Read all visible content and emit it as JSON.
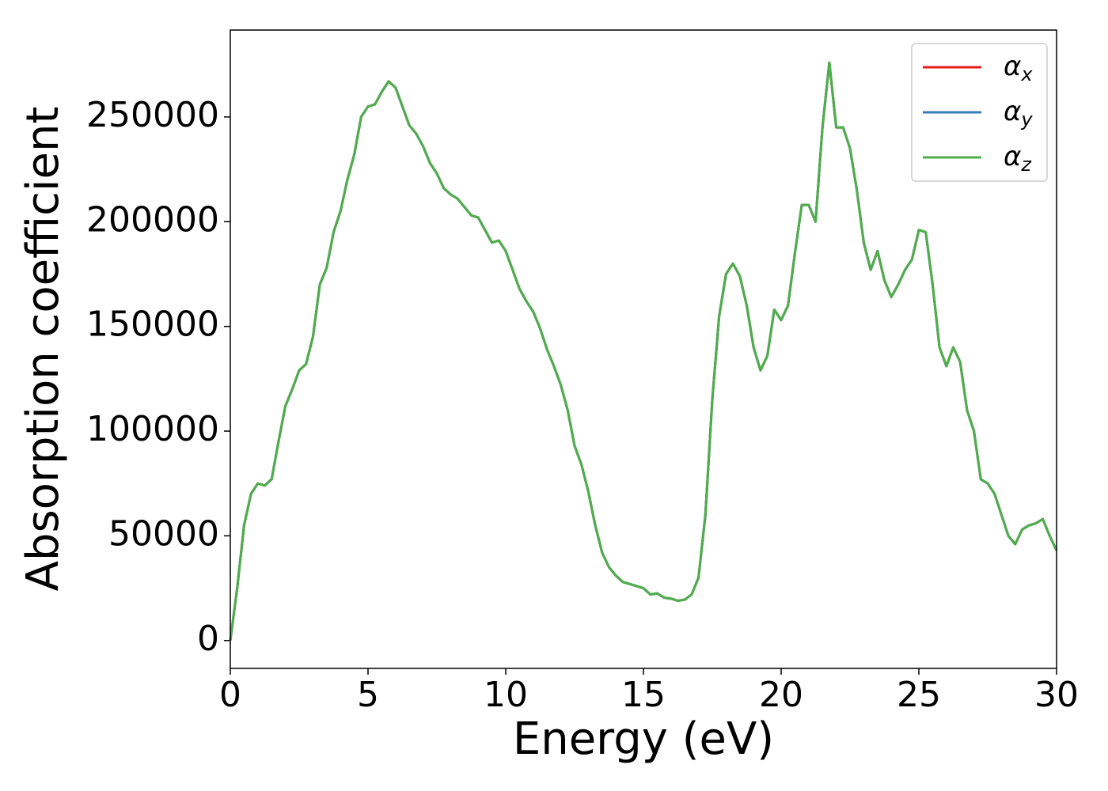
{
  "chart_data": {
    "type": "line",
    "xlabel": "Energy (eV)",
    "ylabel": "Absorption coefficient",
    "x": [
      0,
      0.25,
      0.5,
      0.75,
      1,
      1.25,
      1.5,
      1.75,
      2,
      2.25,
      2.5,
      2.75,
      3,
      3.25,
      3.5,
      3.75,
      4,
      4.25,
      4.5,
      4.75,
      5,
      5.25,
      5.5,
      5.75,
      6,
      6.25,
      6.5,
      6.75,
      7,
      7.25,
      7.5,
      7.75,
      8,
      8.25,
      8.5,
      8.75,
      9,
      9.25,
      9.5,
      9.75,
      10,
      10.25,
      10.5,
      10.75,
      11,
      11.25,
      11.5,
      11.75,
      12,
      12.25,
      12.5,
      12.75,
      13,
      13.25,
      13.5,
      13.75,
      14,
      14.25,
      14.5,
      14.75,
      15,
      15.25,
      15.5,
      15.75,
      16,
      16.25,
      16.5,
      16.75,
      17,
      17.25,
      17.5,
      17.75,
      18,
      18.25,
      18.5,
      18.75,
      19,
      19.25,
      19.5,
      19.75,
      20,
      20.25,
      20.5,
      20.75,
      21,
      21.25,
      21.5,
      21.75,
      22,
      22.25,
      22.5,
      22.75,
      23,
      23.25,
      23.5,
      23.75,
      24,
      24.25,
      24.5,
      24.75,
      25,
      25.25,
      25.5,
      25.75,
      26,
      26.25,
      26.5,
      26.75,
      27,
      27.25,
      27.5,
      27.75,
      28,
      28.25,
      28.5,
      28.75,
      29,
      29.25,
      29.5,
      29.75,
      30
    ],
    "series": [
      {
        "name": "αx",
        "color": "#e41a1c",
        "values": [
          0,
          25000,
          55000,
          70000,
          75000,
          74000,
          77000,
          95000,
          112000,
          120000,
          129000,
          132000,
          145000,
          170000,
          178000,
          195000,
          205000,
          220000,
          232000,
          250000,
          255000,
          256000,
          262000,
          267000,
          264000,
          255000,
          246000,
          242000,
          236000,
          228000,
          223000,
          216000,
          213000,
          211000,
          207000,
          203000,
          202000,
          196000,
          190000,
          191000,
          186000,
          177000,
          168000,
          162000,
          157000,
          149000,
          139000,
          131000,
          122000,
          110000,
          93000,
          84000,
          71000,
          55000,
          42000,
          35000,
          31000,
          28000,
          27000,
          26000,
          25000,
          22000,
          22500,
          20500,
          20000,
          19000,
          19500,
          22000,
          30000,
          60000,
          115000,
          155000,
          175000,
          180000,
          174000,
          160000,
          140000,
          129000,
          136000,
          158000,
          153000,
          160000,
          185000,
          208000,
          208000,
          200000,
          245000,
          276000,
          245000,
          245000,
          235000,
          215000,
          190000,
          177000,
          186000,
          172000,
          164000,
          170000,
          177000,
          182000,
          196000,
          195000,
          170000,
          140000,
          131000,
          140000,
          133000,
          110000,
          100000,
          77000,
          75000,
          70000,
          60000,
          50000,
          46000,
          53000,
          55000,
          56000,
          58000,
          50000,
          43000
        ]
      },
      {
        "name": "αy",
        "color": "#377eb8",
        "values": [
          0,
          25000,
          55000,
          70000,
          75000,
          74000,
          77000,
          95000,
          112000,
          120000,
          129000,
          132000,
          145000,
          170000,
          178000,
          195000,
          205000,
          220000,
          232000,
          250000,
          255000,
          256000,
          262000,
          267000,
          264000,
          255000,
          246000,
          242000,
          236000,
          228000,
          223000,
          216000,
          213000,
          211000,
          207000,
          203000,
          202000,
          196000,
          190000,
          191000,
          186000,
          177000,
          168000,
          162000,
          157000,
          149000,
          139000,
          131000,
          122000,
          110000,
          93000,
          84000,
          71000,
          55000,
          42000,
          35000,
          31000,
          28000,
          27000,
          26000,
          25000,
          22000,
          22500,
          20500,
          20000,
          19000,
          19500,
          22000,
          30000,
          60000,
          115000,
          155000,
          175000,
          180000,
          174000,
          160000,
          140000,
          129000,
          136000,
          158000,
          153000,
          160000,
          185000,
          208000,
          208000,
          200000,
          245000,
          276000,
          245000,
          245000,
          235000,
          215000,
          190000,
          177000,
          186000,
          172000,
          164000,
          170000,
          177000,
          182000,
          196000,
          195000,
          170000,
          140000,
          131000,
          140000,
          133000,
          110000,
          100000,
          77000,
          75000,
          70000,
          60000,
          50000,
          46000,
          53000,
          55000,
          56000,
          58000,
          50000,
          43000
        ]
      },
      {
        "name": "αz",
        "color": "#4daf4a",
        "values": [
          0,
          25000,
          55000,
          70000,
          75000,
          74000,
          77000,
          95000,
          112000,
          120000,
          129000,
          132000,
          145000,
          170000,
          178000,
          195000,
          205000,
          220000,
          232000,
          250000,
          255000,
          256000,
          262000,
          267000,
          264000,
          255000,
          246000,
          242000,
          236000,
          228000,
          223000,
          216000,
          213000,
          211000,
          207000,
          203000,
          202000,
          196000,
          190000,
          191000,
          186000,
          177000,
          168000,
          162000,
          157000,
          149000,
          139000,
          131000,
          122000,
          110000,
          93000,
          84000,
          71000,
          55000,
          42000,
          35000,
          31000,
          28000,
          27000,
          26000,
          25000,
          22000,
          22500,
          20500,
          20000,
          19000,
          19500,
          22000,
          30000,
          60000,
          115000,
          155000,
          175000,
          180000,
          174000,
          160000,
          140000,
          129000,
          136000,
          158000,
          153000,
          160000,
          185000,
          208000,
          208000,
          200000,
          245000,
          276000,
          245000,
          245000,
          235000,
          215000,
          190000,
          177000,
          186000,
          172000,
          164000,
          170000,
          177000,
          182000,
          196000,
          195000,
          170000,
          140000,
          131000,
          140000,
          133000,
          110000,
          100000,
          77000,
          75000,
          70000,
          60000,
          50000,
          46000,
          53000,
          55000,
          56000,
          58000,
          50000,
          43000
        ]
      }
    ],
    "xlim": [
      0,
      30
    ],
    "xticks": [
      0,
      5,
      10,
      15,
      20,
      25,
      30
    ],
    "ylim": [
      -13300,
      291500
    ],
    "yticks": [
      0,
      50000,
      100000,
      150000,
      200000,
      250000
    ],
    "grid": false,
    "legend": "upper right"
  }
}
